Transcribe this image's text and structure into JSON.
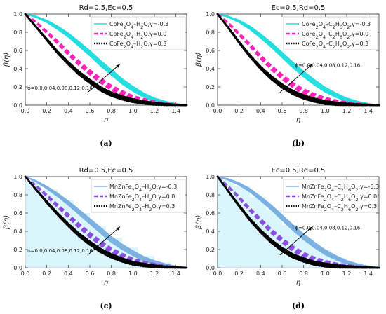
{
  "chart_data": [
    {
      "type": "line",
      "id": "a",
      "title": "Rd=0.5,Ec=0.5",
      "xlabel": "η",
      "ylabel": "β(η)",
      "xlim": [
        0,
        1.5
      ],
      "ylim": [
        0,
        1.0
      ],
      "xticks": [
        "0.0",
        "0.2",
        "0.4",
        "0.6",
        "0.8",
        "1.0",
        "1.2",
        "1.4"
      ],
      "yticks": [
        "0.0",
        "0.2",
        "0.4",
        "0.6",
        "0.8",
        "1.0"
      ],
      "legend_position": "top-right",
      "annotation": "ϕ=0.0,0.04,0.08,0.12,0.16",
      "panel_label": "(a)",
      "x": [
        0,
        0.1,
        0.2,
        0.3,
        0.4,
        0.5,
        0.6,
        0.7,
        0.8,
        0.9,
        1.0,
        1.1,
        1.2,
        1.3,
        1.4,
        1.5
      ],
      "series": [
        {
          "name": "CoFe2O4–H2O,γ=-0.3",
          "color": "#22dede",
          "style": "solid",
          "band": 0.03,
          "values": [
            1.0,
            0.97,
            0.92,
            0.85,
            0.77,
            0.67,
            0.57,
            0.46,
            0.36,
            0.26,
            0.18,
            0.11,
            0.06,
            0.03,
            0.01,
            0.0
          ]
        },
        {
          "name": "CoFe2O4–H2O,γ=0.0",
          "color": "#ff22bb",
          "style": "dashed",
          "band": 0.025,
          "values": [
            1.0,
            0.91,
            0.8,
            0.69,
            0.57,
            0.46,
            0.36,
            0.27,
            0.19,
            0.13,
            0.08,
            0.05,
            0.03,
            0.01,
            0.005,
            0.0
          ]
        },
        {
          "name": "CoFe2O4–H2O,γ=0.3",
          "color": "#000000",
          "style": "dotted",
          "band": 0.02,
          "values": [
            1.0,
            0.86,
            0.72,
            0.58,
            0.46,
            0.35,
            0.26,
            0.18,
            0.12,
            0.08,
            0.05,
            0.03,
            0.015,
            0.008,
            0.003,
            0.0
          ]
        }
      ]
    },
    {
      "type": "line",
      "id": "b",
      "title": "Ec=0.5,Rd=0.5",
      "xlabel": "η",
      "ylabel": "β(η)",
      "xlim": [
        0,
        1.5
      ],
      "ylim": [
        0,
        1.0
      ],
      "xticks": [
        "0.0",
        "0.2",
        "0.4",
        "0.6",
        "0.8",
        "1.0",
        "1.2",
        "1.4"
      ],
      "yticks": [
        "0.0",
        "0.2",
        "0.4",
        "0.6",
        "0.8",
        "1.0"
      ],
      "legend_position": "top-right",
      "annotation": "ϕ=0.0,0.04,0.08,0.12,0.16",
      "panel_label": "(b)",
      "x": [
        0,
        0.1,
        0.2,
        0.3,
        0.4,
        0.5,
        0.6,
        0.7,
        0.8,
        0.9,
        1.0,
        1.1,
        1.2,
        1.3,
        1.4,
        1.5
      ],
      "series": [
        {
          "name": "CoFe2O4–C2H6O2,γ=-0.3",
          "color": "#22dede",
          "style": "solid",
          "band": 0.03,
          "values": [
            1.0,
            0.97,
            0.92,
            0.85,
            0.76,
            0.66,
            0.55,
            0.44,
            0.34,
            0.25,
            0.17,
            0.11,
            0.06,
            0.03,
            0.01,
            0.0
          ]
        },
        {
          "name": "CoFe2O4–C2H6O2,γ=0.0",
          "color": "#ff22bb",
          "style": "dashed",
          "band": 0.025,
          "values": [
            1.0,
            0.9,
            0.78,
            0.66,
            0.53,
            0.41,
            0.31,
            0.22,
            0.15,
            0.1,
            0.06,
            0.035,
            0.02,
            0.01,
            0.004,
            0.0
          ]
        },
        {
          "name": "CoFe2O4–C2H6O2,γ=0.3",
          "color": "#000000",
          "style": "dotted",
          "band": 0.02,
          "values": [
            1.0,
            0.85,
            0.69,
            0.54,
            0.41,
            0.3,
            0.21,
            0.14,
            0.09,
            0.055,
            0.03,
            0.016,
            0.008,
            0.004,
            0.002,
            0.0
          ]
        }
      ]
    },
    {
      "type": "line",
      "id": "c",
      "title": "Rd=0.5,Ec=0.5",
      "xlabel": "η",
      "ylabel": "β(η)",
      "xlim": [
        0,
        1.5
      ],
      "ylim": [
        0,
        1.0
      ],
      "xticks": [
        "0.0",
        "0.2",
        "0.4",
        "0.6",
        "0.8",
        "1.0",
        "1.2",
        "1.4"
      ],
      "yticks": [
        "0.0",
        "0.2",
        "0.4",
        "0.6",
        "0.8",
        "1.0"
      ],
      "legend_position": "top-right",
      "annotation": "ϕ=0.0,0.04,0.08,0.12,0.16",
      "panel_label": "(c)",
      "x": [
        0,
        0.1,
        0.2,
        0.3,
        0.4,
        0.5,
        0.6,
        0.7,
        0.8,
        0.9,
        1.0,
        1.1,
        1.2,
        1.3,
        1.4,
        1.5
      ],
      "series": [
        {
          "name": "MnZnFe2O4–H2O,γ=-0.3",
          "color": "#7ab0e0",
          "style": "solid",
          "band": 0.03,
          "values": [
            1.0,
            0.95,
            0.88,
            0.8,
            0.71,
            0.61,
            0.51,
            0.41,
            0.31,
            0.23,
            0.16,
            0.1,
            0.06,
            0.03,
            0.01,
            0.0
          ]
        },
        {
          "name": "MnZnFe2O4–H2O,γ=0.0",
          "color": "#8a4fe0",
          "style": "dashed",
          "band": 0.025,
          "values": [
            1.0,
            0.9,
            0.79,
            0.68,
            0.57,
            0.46,
            0.36,
            0.27,
            0.19,
            0.13,
            0.08,
            0.05,
            0.03,
            0.015,
            0.005,
            0.0
          ]
        },
        {
          "name": "MnZnFe2O4–H2O,γ=0.3",
          "color": "#000000",
          "style": "dotted",
          "band": 0.02,
          "values": [
            1.0,
            0.86,
            0.72,
            0.59,
            0.47,
            0.36,
            0.27,
            0.19,
            0.13,
            0.085,
            0.05,
            0.03,
            0.016,
            0.008,
            0.003,
            0.0
          ]
        }
      ],
      "steps": [
        {
          "x0": 0.0,
          "x1": 0.15,
          "y": 0.95
        },
        {
          "x0": 0.15,
          "x1": 0.3,
          "y": 0.86
        },
        {
          "x0": 0.3,
          "x1": 0.45,
          "y": 0.74
        },
        {
          "x0": 0.45,
          "x1": 0.6,
          "y": 0.6
        },
        {
          "x0": 0.6,
          "x1": 0.75,
          "y": 0.46
        },
        {
          "x0": 0.75,
          "x1": 0.9,
          "y": 0.33
        },
        {
          "x0": 0.9,
          "x1": 1.05,
          "y": 0.22
        },
        {
          "x0": 1.05,
          "x1": 1.2,
          "y": 0.13
        },
        {
          "x0": 1.2,
          "x1": 1.35,
          "y": 0.06
        },
        {
          "x0": 1.35,
          "x1": 1.5,
          "y": 0.02
        }
      ]
    },
    {
      "type": "line",
      "id": "d",
      "title": "Ec=0.5,Rd=0.5",
      "xlabel": "η",
      "ylabel": "β(η)",
      "xlim": [
        0,
        1.5
      ],
      "ylim": [
        0,
        1.0
      ],
      "xticks": [
        "0.0",
        "0.2",
        "0.4",
        "0.6",
        "0.8",
        "1.0",
        "1.2",
        "1.4"
      ],
      "yticks": [
        "0.0",
        "0.2",
        "0.4",
        "0.6",
        "0.8",
        "1.0"
      ],
      "legend_position": "top-right",
      "annotation": "ϕ=0.0,0.04,0.08,0.12,0.16",
      "panel_label": "(d)",
      "x": [
        0,
        0.1,
        0.2,
        0.3,
        0.4,
        0.5,
        0.6,
        0.7,
        0.8,
        0.9,
        1.0,
        1.1,
        1.2,
        1.3,
        1.4,
        1.5
      ],
      "series": [
        {
          "name": "MnZnFe2O4–C2H6O2,γ=-0.3",
          "color": "#7ab0e0",
          "style": "solid",
          "band": 0.03,
          "values": [
            1.0,
            0.97,
            0.92,
            0.85,
            0.76,
            0.66,
            0.55,
            0.44,
            0.34,
            0.25,
            0.17,
            0.11,
            0.06,
            0.03,
            0.01,
            0.0
          ]
        },
        {
          "name": "MnZnFe2O4–C2H6O2,γ=0.0",
          "color": "#8a4fe0",
          "style": "dashed",
          "band": 0.025,
          "values": [
            1.0,
            0.89,
            0.77,
            0.64,
            0.52,
            0.4,
            0.3,
            0.21,
            0.14,
            0.09,
            0.055,
            0.03,
            0.017,
            0.008,
            0.003,
            0.0
          ]
        },
        {
          "name": "MnZnFe2O4–C2H6O2,γ=0.3",
          "color": "#000000",
          "style": "dotted",
          "band": 0.02,
          "values": [
            1.0,
            0.84,
            0.68,
            0.53,
            0.4,
            0.29,
            0.2,
            0.13,
            0.085,
            0.05,
            0.03,
            0.016,
            0.008,
            0.004,
            0.002,
            0.0
          ]
        }
      ],
      "steps": [
        {
          "x0": 0.0,
          "x1": 0.15,
          "y": 0.97
        },
        {
          "x0": 0.15,
          "x1": 0.3,
          "y": 0.9
        },
        {
          "x0": 0.3,
          "x1": 0.45,
          "y": 0.78
        },
        {
          "x0": 0.45,
          "x1": 0.6,
          "y": 0.63
        },
        {
          "x0": 0.6,
          "x1": 0.75,
          "y": 0.47
        },
        {
          "x0": 0.75,
          "x1": 0.9,
          "y": 0.32
        },
        {
          "x0": 0.9,
          "x1": 1.05,
          "y": 0.2
        },
        {
          "x0": 1.05,
          "x1": 1.2,
          "y": 0.11
        },
        {
          "x0": 1.2,
          "x1": 1.35,
          "y": 0.05
        },
        {
          "x0": 1.35,
          "x1": 1.5,
          "y": 0.02
        }
      ]
    }
  ]
}
